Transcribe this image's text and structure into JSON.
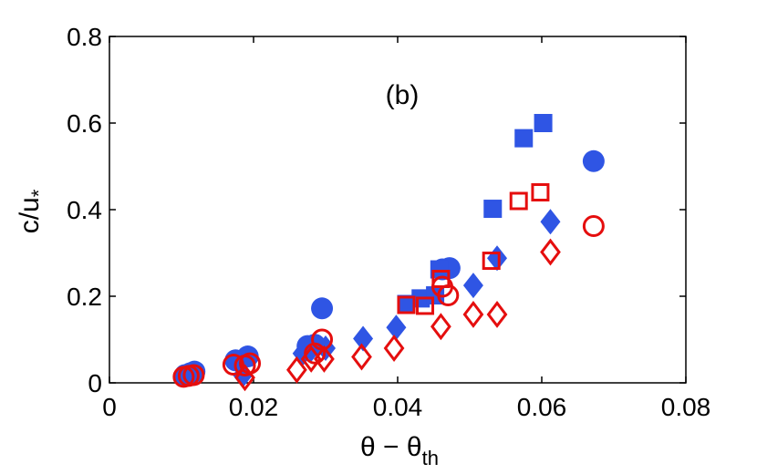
{
  "chart_data": {
    "type": "scatter",
    "panel_label": "(b)",
    "xlabel_main": "θ − θ",
    "xlabel_sub": "th",
    "ylabel_main": "c/u",
    "ylabel_sub": "*",
    "xlim": [
      0,
      0.08
    ],
    "ylim": [
      0,
      0.8
    ],
    "xticks": [
      0,
      0.02,
      0.04,
      0.06,
      0.08
    ],
    "yticks": [
      0,
      0.2,
      0.4,
      0.6,
      0.8
    ],
    "xtick_labels": [
      "0",
      "0.02",
      "0.04",
      "0.06",
      "0.08"
    ],
    "ytick_labels": [
      "0",
      "0.2",
      "0.4",
      "0.6",
      "0.8"
    ],
    "grid": false,
    "series": [
      {
        "name": "filled-circles",
        "marker": "circle",
        "filled": true,
        "color": "#2f55e4",
        "points": [
          [
            0.0105,
            0.018
          ],
          [
            0.0112,
            0.022
          ],
          [
            0.0118,
            0.026
          ],
          [
            0.0175,
            0.052
          ],
          [
            0.0192,
            0.061
          ],
          [
            0.0275,
            0.085
          ],
          [
            0.0285,
            0.088
          ],
          [
            0.0295,
            0.172
          ],
          [
            0.0462,
            0.262
          ],
          [
            0.0472,
            0.265
          ],
          [
            0.0672,
            0.512
          ]
        ]
      },
      {
        "name": "filled-squares",
        "marker": "square",
        "filled": true,
        "color": "#2f55e4",
        "points": [
          [
            0.0412,
            0.182
          ],
          [
            0.0432,
            0.195
          ],
          [
            0.0452,
            0.202
          ],
          [
            0.0458,
            0.262
          ],
          [
            0.0532,
            0.402
          ],
          [
            0.0575,
            0.565
          ],
          [
            0.0602,
            0.6
          ]
        ]
      },
      {
        "name": "filled-diamonds",
        "marker": "diamond",
        "filled": true,
        "color": "#2f55e4",
        "points": [
          [
            0.0185,
            0.018
          ],
          [
            0.0268,
            0.068
          ],
          [
            0.028,
            0.078
          ],
          [
            0.03,
            0.08
          ],
          [
            0.0352,
            0.102
          ],
          [
            0.0398,
            0.128
          ],
          [
            0.0505,
            0.225
          ],
          [
            0.0538,
            0.288
          ],
          [
            0.0612,
            0.372
          ]
        ]
      },
      {
        "name": "open-circles",
        "marker": "circle",
        "filled": false,
        "color": "#e50e0e",
        "points": [
          [
            0.0103,
            0.014
          ],
          [
            0.011,
            0.016
          ],
          [
            0.0117,
            0.018
          ],
          [
            0.0172,
            0.042
          ],
          [
            0.0188,
            0.04
          ],
          [
            0.0195,
            0.045
          ],
          [
            0.0285,
            0.068
          ],
          [
            0.0295,
            0.1
          ],
          [
            0.0462,
            0.222
          ],
          [
            0.047,
            0.202
          ],
          [
            0.0672,
            0.362
          ]
        ]
      },
      {
        "name": "open-squares",
        "marker": "square",
        "filled": false,
        "color": "#e50e0e",
        "points": [
          [
            0.0412,
            0.18
          ],
          [
            0.0438,
            0.178
          ],
          [
            0.046,
            0.24
          ],
          [
            0.053,
            0.282
          ],
          [
            0.0568,
            0.42
          ],
          [
            0.0598,
            0.44
          ]
        ]
      },
      {
        "name": "open-diamonds",
        "marker": "diamond",
        "filled": false,
        "color": "#e50e0e",
        "points": [
          [
            0.0188,
            0.012
          ],
          [
            0.026,
            0.03
          ],
          [
            0.028,
            0.055
          ],
          [
            0.0298,
            0.055
          ],
          [
            0.035,
            0.06
          ],
          [
            0.0395,
            0.08
          ],
          [
            0.046,
            0.13
          ],
          [
            0.0505,
            0.158
          ],
          [
            0.0538,
            0.158
          ],
          [
            0.0612,
            0.302
          ]
        ]
      }
    ]
  }
}
